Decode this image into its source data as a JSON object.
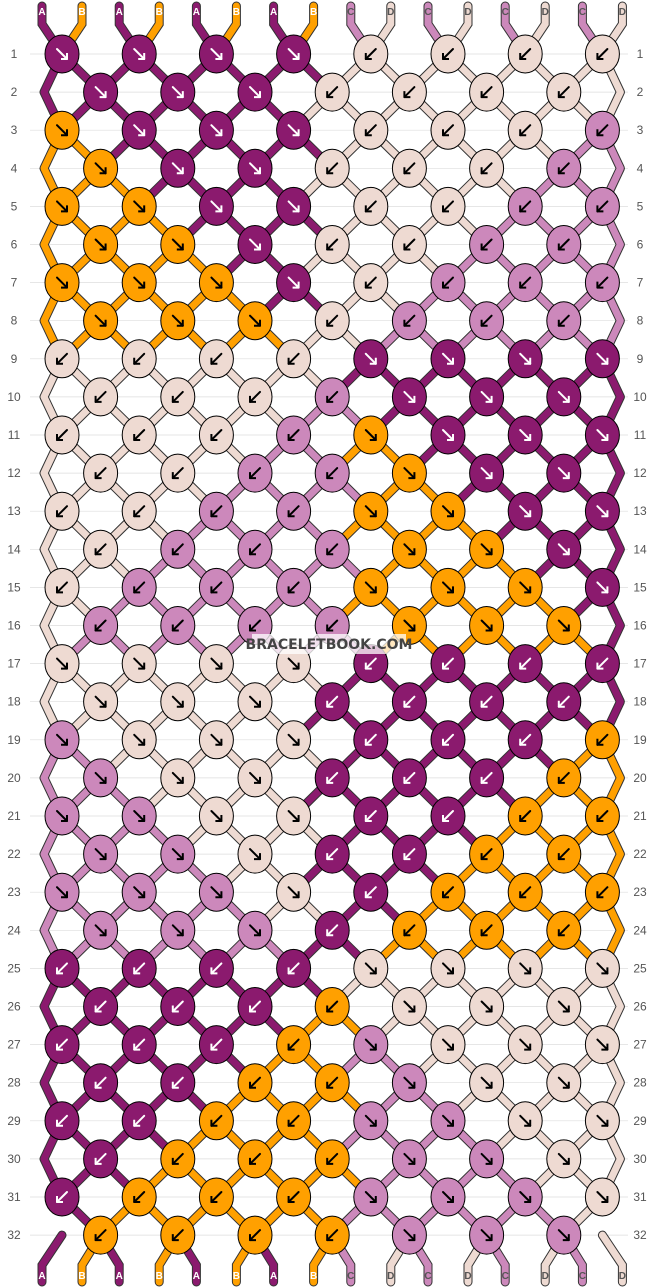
{
  "watermark": "BRACELETBOOK.COM",
  "colors": {
    "A": "#8b1a6e",
    "B": "#ffa000",
    "C": "#cc88bb",
    "D": "#eedad2",
    "outline": "#000000",
    "arrow_dark_bg": "#ffffff",
    "arrow_light_bg": "#000000"
  },
  "strands_top": [
    "A",
    "B",
    "A",
    "B",
    "A",
    "B",
    "A",
    "B",
    "C",
    "D",
    "C",
    "D",
    "C",
    "D",
    "C",
    "D"
  ],
  "strands_bottom": [
    "A",
    "B",
    "A",
    "B",
    "A",
    "B",
    "A",
    "B",
    "C",
    "D",
    "C",
    "D",
    "C",
    "D",
    "C",
    "D"
  ],
  "row_numbers": [
    "1",
    "2",
    "3",
    "4",
    "5",
    "6",
    "7",
    "8",
    "9",
    "10",
    "11",
    "12",
    "13",
    "14",
    "15",
    "16",
    "17",
    "18",
    "19",
    "20",
    "21",
    "22",
    "23",
    "24",
    "25",
    "26",
    "27",
    "28",
    "29",
    "30",
    "31",
    "32"
  ],
  "rows": [
    {
      "knots": [
        [
          "A",
          "rd"
        ],
        [
          "A",
          "rd"
        ],
        [
          "A",
          "rd"
        ],
        [
          "A",
          "rd"
        ],
        [
          "D",
          "ld"
        ],
        [
          "D",
          "ld"
        ],
        [
          "D",
          "ld"
        ],
        [
          "D",
          "ld"
        ]
      ]
    },
    {
      "knots": [
        [
          "A",
          "rd"
        ],
        [
          "A",
          "rd"
        ],
        [
          "A",
          "rd"
        ],
        [
          "D",
          "ld"
        ],
        [
          "D",
          "ld"
        ],
        [
          "D",
          "ld"
        ],
        [
          "D",
          "ld"
        ]
      ]
    },
    {
      "knots": [
        [
          "B",
          "rd"
        ],
        [
          "A",
          "rd"
        ],
        [
          "A",
          "rd"
        ],
        [
          "A",
          "rd"
        ],
        [
          "D",
          "ld"
        ],
        [
          "D",
          "ld"
        ],
        [
          "D",
          "ld"
        ],
        [
          "C",
          "ld"
        ]
      ]
    },
    {
      "knots": [
        [
          "B",
          "rd"
        ],
        [
          "A",
          "rd"
        ],
        [
          "A",
          "rd"
        ],
        [
          "D",
          "ld"
        ],
        [
          "D",
          "ld"
        ],
        [
          "D",
          "ld"
        ],
        [
          "C",
          "ld"
        ]
      ]
    },
    {
      "knots": [
        [
          "B",
          "rd"
        ],
        [
          "B",
          "rd"
        ],
        [
          "A",
          "rd"
        ],
        [
          "A",
          "rd"
        ],
        [
          "D",
          "ld"
        ],
        [
          "D",
          "ld"
        ],
        [
          "C",
          "ld"
        ],
        [
          "C",
          "ld"
        ]
      ]
    },
    {
      "knots": [
        [
          "B",
          "rd"
        ],
        [
          "B",
          "rd"
        ],
        [
          "A",
          "rd"
        ],
        [
          "D",
          "ld"
        ],
        [
          "D",
          "ld"
        ],
        [
          "C",
          "ld"
        ],
        [
          "C",
          "ld"
        ]
      ]
    },
    {
      "knots": [
        [
          "B",
          "rd"
        ],
        [
          "B",
          "rd"
        ],
        [
          "B",
          "rd"
        ],
        [
          "A",
          "rd"
        ],
        [
          "D",
          "ld"
        ],
        [
          "C",
          "ld"
        ],
        [
          "C",
          "ld"
        ],
        [
          "C",
          "ld"
        ]
      ]
    },
    {
      "knots": [
        [
          "B",
          "rd"
        ],
        [
          "B",
          "rd"
        ],
        [
          "B",
          "rd"
        ],
        [
          "D",
          "ld"
        ],
        [
          "C",
          "ld"
        ],
        [
          "C",
          "ld"
        ],
        [
          "C",
          "ld"
        ]
      ]
    },
    {
      "knots": [
        [
          "D",
          "ld"
        ],
        [
          "D",
          "ld"
        ],
        [
          "D",
          "ld"
        ],
        [
          "D",
          "ld"
        ],
        [
          "A",
          "rd"
        ],
        [
          "A",
          "rd"
        ],
        [
          "A",
          "rd"
        ],
        [
          "A",
          "rd"
        ]
      ]
    },
    {
      "knots": [
        [
          "D",
          "ld"
        ],
        [
          "D",
          "ld"
        ],
        [
          "D",
          "ld"
        ],
        [
          "C",
          "ld"
        ],
        [
          "A",
          "rd"
        ],
        [
          "A",
          "rd"
        ],
        [
          "A",
          "rd"
        ]
      ]
    },
    {
      "knots": [
        [
          "D",
          "ld"
        ],
        [
          "D",
          "ld"
        ],
        [
          "D",
          "ld"
        ],
        [
          "C",
          "ld"
        ],
        [
          "B",
          "rd"
        ],
        [
          "A",
          "rd"
        ],
        [
          "A",
          "rd"
        ],
        [
          "A",
          "rd"
        ]
      ]
    },
    {
      "knots": [
        [
          "D",
          "ld"
        ],
        [
          "D",
          "ld"
        ],
        [
          "C",
          "ld"
        ],
        [
          "C",
          "ld"
        ],
        [
          "B",
          "rd"
        ],
        [
          "A",
          "rd"
        ],
        [
          "A",
          "rd"
        ]
      ]
    },
    {
      "knots": [
        [
          "D",
          "ld"
        ],
        [
          "D",
          "ld"
        ],
        [
          "C",
          "ld"
        ],
        [
          "C",
          "ld"
        ],
        [
          "B",
          "rd"
        ],
        [
          "B",
          "rd"
        ],
        [
          "A",
          "rd"
        ],
        [
          "A",
          "rd"
        ]
      ]
    },
    {
      "knots": [
        [
          "D",
          "ld"
        ],
        [
          "C",
          "ld"
        ],
        [
          "C",
          "ld"
        ],
        [
          "C",
          "ld"
        ],
        [
          "B",
          "rd"
        ],
        [
          "B",
          "rd"
        ],
        [
          "A",
          "rd"
        ]
      ]
    },
    {
      "knots": [
        [
          "D",
          "ld"
        ],
        [
          "C",
          "ld"
        ],
        [
          "C",
          "ld"
        ],
        [
          "C",
          "ld"
        ],
        [
          "B",
          "rd"
        ],
        [
          "B",
          "rd"
        ],
        [
          "B",
          "rd"
        ],
        [
          "A",
          "rd"
        ]
      ]
    },
    {
      "knots": [
        [
          "C",
          "ld"
        ],
        [
          "C",
          "ld"
        ],
        [
          "C",
          "ld"
        ],
        [
          "C",
          "ld"
        ],
        [
          "B",
          "rd"
        ],
        [
          "B",
          "rd"
        ],
        [
          "B",
          "rd"
        ]
      ]
    },
    {
      "knots": [
        [
          "D",
          "rd"
        ],
        [
          "D",
          "rd"
        ],
        [
          "D",
          "rd"
        ],
        [
          "D",
          "rd"
        ],
        [
          "A",
          "ld"
        ],
        [
          "A",
          "ld"
        ],
        [
          "A",
          "ld"
        ],
        [
          "A",
          "ld"
        ]
      ]
    },
    {
      "knots": [
        [
          "D",
          "rd"
        ],
        [
          "D",
          "rd"
        ],
        [
          "D",
          "rd"
        ],
        [
          "A",
          "ld"
        ],
        [
          "A",
          "ld"
        ],
        [
          "A",
          "ld"
        ],
        [
          "A",
          "ld"
        ]
      ]
    },
    {
      "knots": [
        [
          "C",
          "rd"
        ],
        [
          "D",
          "rd"
        ],
        [
          "D",
          "rd"
        ],
        [
          "D",
          "rd"
        ],
        [
          "A",
          "ld"
        ],
        [
          "A",
          "ld"
        ],
        [
          "A",
          "ld"
        ],
        [
          "B",
          "ld"
        ]
      ]
    },
    {
      "knots": [
        [
          "C",
          "rd"
        ],
        [
          "D",
          "rd"
        ],
        [
          "D",
          "rd"
        ],
        [
          "A",
          "ld"
        ],
        [
          "A",
          "ld"
        ],
        [
          "A",
          "ld"
        ],
        [
          "B",
          "ld"
        ]
      ]
    },
    {
      "knots": [
        [
          "C",
          "rd"
        ],
        [
          "C",
          "rd"
        ],
        [
          "D",
          "rd"
        ],
        [
          "D",
          "rd"
        ],
        [
          "A",
          "ld"
        ],
        [
          "A",
          "ld"
        ],
        [
          "B",
          "ld"
        ],
        [
          "B",
          "ld"
        ]
      ]
    },
    {
      "knots": [
        [
          "C",
          "rd"
        ],
        [
          "C",
          "rd"
        ],
        [
          "D",
          "rd"
        ],
        [
          "A",
          "ld"
        ],
        [
          "A",
          "ld"
        ],
        [
          "B",
          "ld"
        ],
        [
          "B",
          "ld"
        ]
      ]
    },
    {
      "knots": [
        [
          "C",
          "rd"
        ],
        [
          "C",
          "rd"
        ],
        [
          "C",
          "rd"
        ],
        [
          "D",
          "rd"
        ],
        [
          "A",
          "ld"
        ],
        [
          "B",
          "ld"
        ],
        [
          "B",
          "ld"
        ],
        [
          "B",
          "ld"
        ]
      ]
    },
    {
      "knots": [
        [
          "C",
          "rd"
        ],
        [
          "C",
          "rd"
        ],
        [
          "C",
          "rd"
        ],
        [
          "A",
          "ld"
        ],
        [
          "B",
          "ld"
        ],
        [
          "B",
          "ld"
        ],
        [
          "B",
          "ld"
        ]
      ]
    },
    {
      "knots": [
        [
          "A",
          "ld"
        ],
        [
          "A",
          "ld"
        ],
        [
          "A",
          "ld"
        ],
        [
          "A",
          "ld"
        ],
        [
          "D",
          "rd"
        ],
        [
          "D",
          "rd"
        ],
        [
          "D",
          "rd"
        ],
        [
          "D",
          "rd"
        ]
      ]
    },
    {
      "knots": [
        [
          "A",
          "ld"
        ],
        [
          "A",
          "ld"
        ],
        [
          "A",
          "ld"
        ],
        [
          "B",
          "ld"
        ],
        [
          "D",
          "rd"
        ],
        [
          "D",
          "rd"
        ],
        [
          "D",
          "rd"
        ]
      ]
    },
    {
      "knots": [
        [
          "A",
          "ld"
        ],
        [
          "A",
          "ld"
        ],
        [
          "A",
          "ld"
        ],
        [
          "B",
          "ld"
        ],
        [
          "C",
          "rd"
        ],
        [
          "D",
          "rd"
        ],
        [
          "D",
          "rd"
        ],
        [
          "D",
          "rd"
        ]
      ]
    },
    {
      "knots": [
        [
          "A",
          "ld"
        ],
        [
          "A",
          "ld"
        ],
        [
          "B",
          "ld"
        ],
        [
          "B",
          "ld"
        ],
        [
          "C",
          "rd"
        ],
        [
          "D",
          "rd"
        ],
        [
          "D",
          "rd"
        ]
      ]
    },
    {
      "knots": [
        [
          "A",
          "ld"
        ],
        [
          "A",
          "ld"
        ],
        [
          "B",
          "ld"
        ],
        [
          "B",
          "ld"
        ],
        [
          "C",
          "rd"
        ],
        [
          "C",
          "rd"
        ],
        [
          "D",
          "rd"
        ],
        [
          "D",
          "rd"
        ]
      ]
    },
    {
      "knots": [
        [
          "A",
          "ld"
        ],
        [
          "B",
          "ld"
        ],
        [
          "B",
          "ld"
        ],
        [
          "B",
          "ld"
        ],
        [
          "C",
          "rd"
        ],
        [
          "C",
          "rd"
        ],
        [
          "D",
          "rd"
        ]
      ]
    },
    {
      "knots": [
        [
          "A",
          "ld"
        ],
        [
          "B",
          "ld"
        ],
        [
          "B",
          "ld"
        ],
        [
          "B",
          "ld"
        ],
        [
          "C",
          "rd"
        ],
        [
          "C",
          "rd"
        ],
        [
          "C",
          "rd"
        ],
        [
          "D",
          "rd"
        ]
      ]
    },
    {
      "knots": [
        [
          "B",
          "ld"
        ],
        [
          "B",
          "ld"
        ],
        [
          "B",
          "ld"
        ],
        [
          "B",
          "ld"
        ],
        [
          "C",
          "rd"
        ],
        [
          "C",
          "rd"
        ],
        [
          "C",
          "rd"
        ]
      ]
    }
  ]
}
